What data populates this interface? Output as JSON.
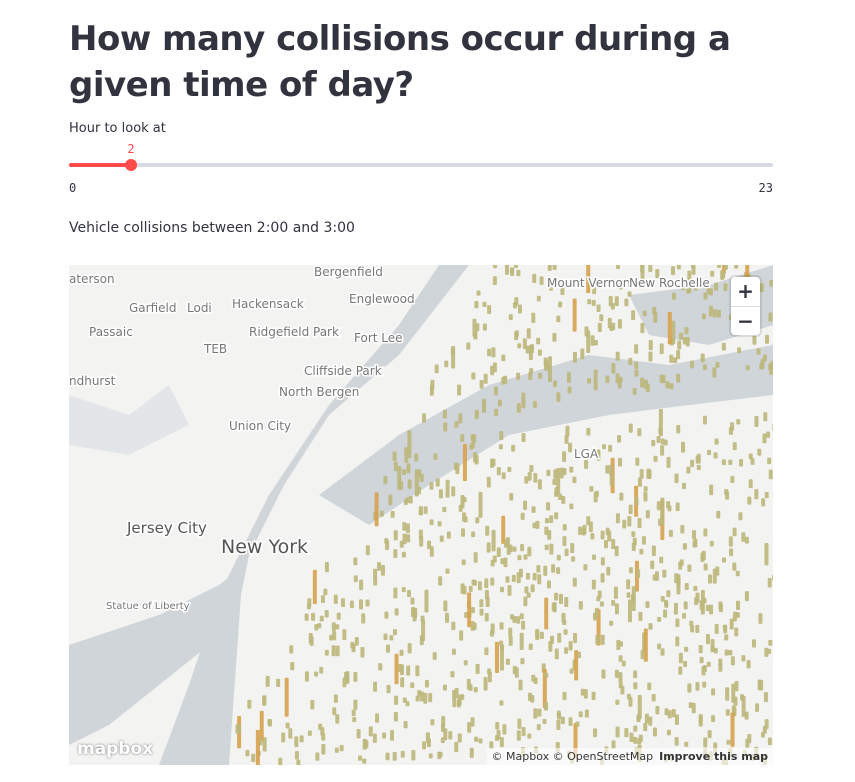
{
  "header": {
    "title": "How many collisions occur during a given time of day?"
  },
  "slider": {
    "label": "Hour to look at",
    "value": 2,
    "min": 0,
    "max": 23
  },
  "caption": "Vehicle collisions between 2:00 and 3:00",
  "map": {
    "place_labels": [
      "aterson",
      "Bergenfield",
      "Mount Vernon",
      "New Rochelle",
      "Garfield",
      "Lodi",
      "Hackensack",
      "Englewood",
      "Passaic",
      "Ridgefield Park",
      "Fort Lee",
      "TEB",
      "Cliffside Park",
      "ndhurst",
      "North Bergen",
      "Union City",
      "LGA",
      "Jersey City",
      "New York",
      "Statue of Liberty"
    ],
    "zoom_in": "+",
    "zoom_out": "−",
    "logo": "mapbox",
    "attribution": "© Mapbox © OpenStreetMap",
    "improve": "Improve this map"
  }
}
